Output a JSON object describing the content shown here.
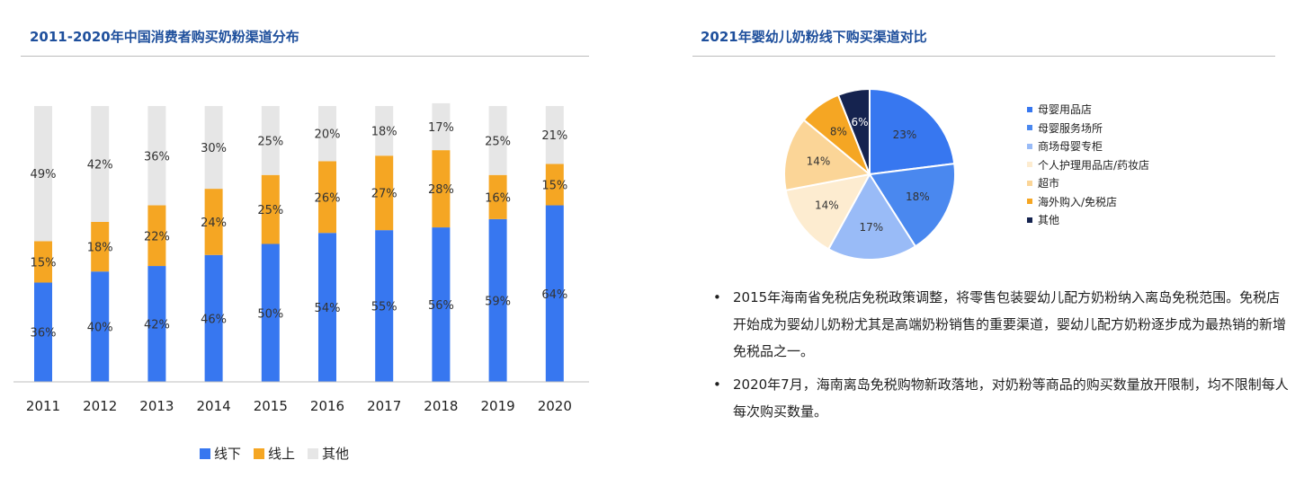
{
  "left": {
    "title": "2011-2020年中国消费者购买奶粉渠道分布"
  },
  "right": {
    "title": "2021年婴幼儿奶粉线下购买渠道对比",
    "bullets": [
      "2015年海南省免税店免税政策调整，将零售包装婴幼儿配方奶粉纳入离岛免税范围。免税店开始成为婴幼儿奶粉尤其是高端奶粉销售的重要渠道，婴幼儿配方奶粉逐步成为最热销的新增免税品之一。",
      "2020年7月，海南离岛免税购物新政落地，对奶粉等商品的购买数量放开限制，均不限制每人每次购买数量。"
    ],
    "bullet_symbol": "•"
  },
  "chart_data": [
    {
      "type": "bar",
      "stacked": true,
      "title": "2011-2020年中国消费者购买奶粉渠道分布",
      "categories": [
        "2011",
        "2012",
        "2013",
        "2014",
        "2015",
        "2016",
        "2017",
        "2018",
        "2019",
        "2020"
      ],
      "series": [
        {
          "name": "线下",
          "color": "#3777f0",
          "values": [
            36,
            40,
            42,
            46,
            50,
            54,
            55,
            56,
            59,
            64
          ],
          "labels": [
            "36%",
            "40%",
            "42%",
            "46%",
            "50%",
            "54%",
            "55%",
            "56%",
            "59%",
            "64%"
          ]
        },
        {
          "name": "线上",
          "color": "#f5a623",
          "values": [
            15,
            18,
            22,
            24,
            25,
            26,
            27,
            28,
            16,
            15
          ],
          "labels": [
            "15%",
            "18%",
            "22%",
            "24%",
            "25%",
            "26%",
            "27%",
            "28%",
            "16%",
            "15%"
          ]
        },
        {
          "name": "其他",
          "color": "#e6e6e6",
          "values": [
            49,
            42,
            36,
            30,
            25,
            20,
            18,
            17,
            25,
            21
          ],
          "labels": [
            "49%",
            "42%",
            "36%",
            "30%",
            "25%",
            "20%",
            "18%",
            "17%",
            "25%",
            "21%"
          ]
        }
      ],
      "ylim": [
        0,
        100
      ],
      "legend_position": "bottom"
    },
    {
      "type": "pie",
      "title": "2021年婴幼儿奶粉线下购买渠道对比",
      "slices": [
        {
          "name": "母婴用品店",
          "value": 23,
          "label": "23%",
          "color": "#3777f0"
        },
        {
          "name": "母婴服务场所",
          "value": 18,
          "label": "18%",
          "color": "#4a88ef"
        },
        {
          "name": "商场母婴专柜",
          "value": 17,
          "label": "17%",
          "color": "#99bbf7"
        },
        {
          "name": "个人护理用品店/药妆店",
          "value": 14,
          "label": "14%",
          "color": "#fdecd0"
        },
        {
          "name": "超市",
          "value": 14,
          "label": "14%",
          "color": "#fbd597"
        },
        {
          "name": "海外购入/免税店",
          "value": 8,
          "label": "8%",
          "color": "#f5a623"
        },
        {
          "name": "其他",
          "value": 6,
          "label": "6%",
          "color": "#15234f"
        }
      ],
      "legend_position": "right"
    }
  ]
}
